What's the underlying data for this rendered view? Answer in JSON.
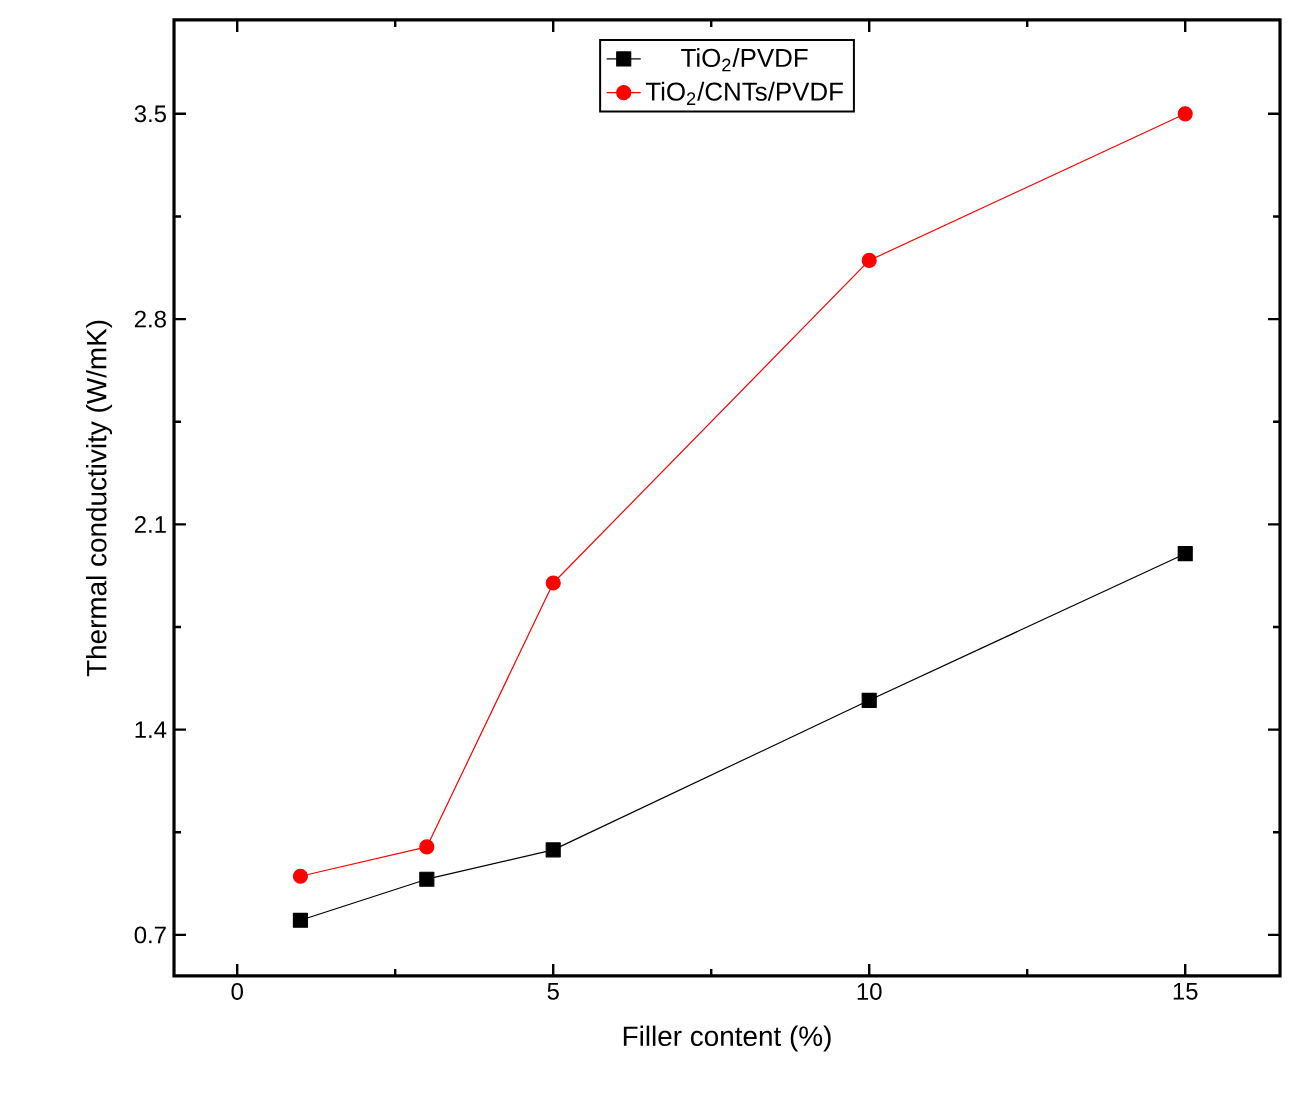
{
  "chart_data": {
    "type": "line",
    "xlabel": "Filler content (%)",
    "ylabel": "Thermal conductivity (W/mK)",
    "xlim": [
      -1,
      16.5
    ],
    "ylim": [
      0.56,
      3.82
    ],
    "xticks": [
      0,
      5,
      10,
      15
    ],
    "yticks": [
      0.7,
      1.4,
      2.1,
      2.8,
      3.5
    ],
    "legend": "top",
    "grid": false,
    "series": [
      {
        "name": "TiO$_{2}$/PVDF",
        "color": "#000000",
        "marker": "square",
        "x": [
          1,
          3,
          5,
          10,
          15
        ],
        "values": [
          0.75,
          0.89,
          0.99,
          1.5,
          2.0
        ]
      },
      {
        "name": "TiO$_{2}$/CNTs/PVDF",
        "color": "#ff0000",
        "marker": "circle",
        "x": [
          1,
          3,
          5,
          10,
          15
        ],
        "values": [
          0.9,
          1.0,
          1.9,
          3.0,
          3.5
        ]
      }
    ]
  }
}
